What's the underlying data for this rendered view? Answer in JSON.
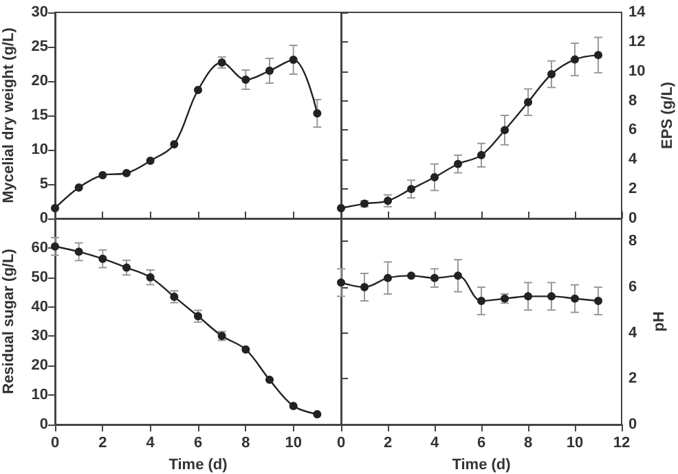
{
  "chart_data": [
    {
      "type": "line",
      "ylabel": "Mycelial dry weight (g/L)",
      "x": [
        0,
        1,
        2,
        3,
        4,
        5,
        6,
        7,
        8,
        9,
        10,
        11
      ],
      "xlim": [
        0,
        12
      ],
      "xticks": [
        0,
        2,
        4,
        6,
        8,
        10,
        12
      ],
      "ylim": [
        0,
        30
      ],
      "yticks": [
        0,
        5,
        10,
        15,
        20,
        25,
        30
      ],
      "tick_labels": "y",
      "marker": "circle",
      "line_style": "solid",
      "series": [
        {
          "color": "#222222",
          "values": [
            1.5,
            4.5,
            6.3,
            6.6,
            8.4,
            10.8,
            18.7,
            22.7,
            20.2,
            21.5,
            23.1,
            15.3
          ],
          "errors": [
            null,
            null,
            null,
            null,
            null,
            null,
            null,
            0.8,
            1.4,
            1.8,
            2.1,
            2.0
          ]
        }
      ]
    },
    {
      "type": "line",
      "y2label": "EPS (g/L)",
      "x": [
        0,
        1,
        2,
        3,
        4,
        5,
        6,
        7,
        8,
        9,
        10,
        11
      ],
      "xlim": [
        0,
        12
      ],
      "xticks": [
        0,
        2,
        4,
        6,
        8,
        10,
        12
      ],
      "y2lim": [
        0,
        14
      ],
      "y2ticks": [
        0,
        2,
        4,
        6,
        8,
        10,
        12,
        14
      ],
      "tick_labels": "y",
      "marker": "circle",
      "line_style": "solid",
      "series": [
        {
          "color": "#222222",
          "axis": "y2",
          "values": [
            0.7,
            1.0,
            1.2,
            2.0,
            2.8,
            3.7,
            4.3,
            6.0,
            7.9,
            9.8,
            10.8,
            11.1
          ],
          "errors": [
            null,
            0.2,
            0.4,
            0.6,
            0.9,
            0.6,
            0.8,
            1.0,
            0.9,
            0.9,
            1.1,
            1.2
          ]
        }
      ]
    },
    {
      "type": "line",
      "xlabel": "Time (d)",
      "ylabel": "Residual sugar (g/L)",
      "x": [
        0,
        1,
        2,
        3,
        4,
        5,
        6,
        7,
        8,
        9,
        10,
        11
      ],
      "xlim": [
        0,
        12
      ],
      "xticks": [
        0,
        2,
        4,
        6,
        8,
        10
      ],
      "ylim": [
        0,
        70
      ],
      "yticks": [
        0,
        10,
        20,
        30,
        40,
        50,
        60
      ],
      "marker": "circle",
      "line_style": "solid",
      "series": [
        {
          "color": "#222222",
          "values": [
            60.5,
            58.7,
            56.3,
            53.3,
            50.0,
            43.4,
            36.8,
            30.1,
            25.5,
            15.2,
            6.3,
            3.5
          ],
          "errors": [
            3,
            3,
            3,
            2.5,
            2.5,
            2,
            2,
            1.5,
            null,
            null,
            null,
            null
          ]
        }
      ]
    },
    {
      "type": "line",
      "xlabel": "Time (d)",
      "y2label": "pH",
      "x": [
        0,
        1,
        2,
        3,
        4,
        5,
        6,
        7,
        8,
        9,
        10,
        11
      ],
      "xlim": [
        0,
        12
      ],
      "xticks": [
        0,
        2,
        4,
        6,
        8,
        10,
        12
      ],
      "y2lim": [
        0,
        9
      ],
      "y2ticks": [
        0,
        2,
        4,
        6,
        8
      ],
      "marker": "circle",
      "line_style": "solid",
      "series": [
        {
          "color": "#222222",
          "axis": "y2",
          "values": [
            6.2,
            6.0,
            6.4,
            6.5,
            6.4,
            6.5,
            5.4,
            5.5,
            5.6,
            5.6,
            5.5,
            5.4
          ],
          "errors": [
            0.6,
            0.6,
            0.7,
            null,
            0.4,
            0.7,
            0.6,
            0.2,
            0.6,
            0.6,
            0.6,
            0.6
          ]
        }
      ]
    }
  ]
}
